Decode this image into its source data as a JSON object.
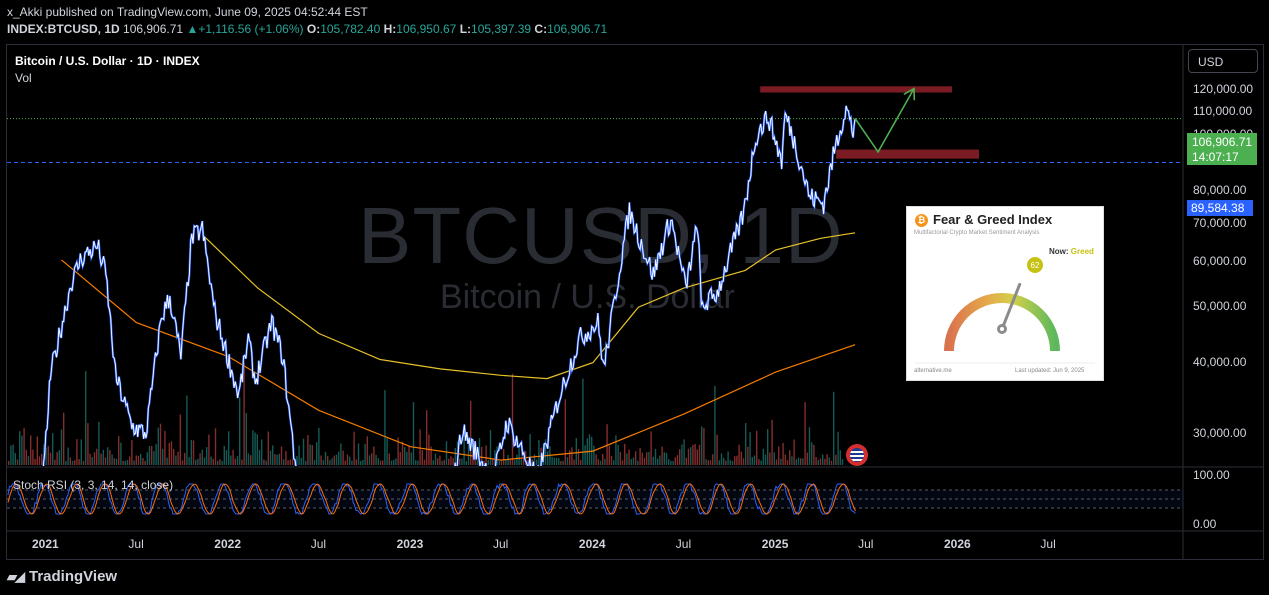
{
  "header": {
    "published_line": "x_Akki published on TradingView.com, June 09, 2025 04:52:44 EST",
    "symbol": "INDEX:BTCUSD, 1D",
    "last": "106,906.71",
    "change": "+1,116.56 (+1.06%)",
    "change_arrow": "▲",
    "o_label": "O:",
    "o": "105,782.40",
    "h_label": "H:",
    "h": "106,950.67",
    "l_label": "L:",
    "l": "105,397.39",
    "c_label": "C:",
    "c": "106,906.71"
  },
  "legend": {
    "title": "Bitcoin / U.S. Dollar · 1D · INDEX",
    "volume": "Vol"
  },
  "watermark": {
    "big": "BTCUSD, 1D",
    "small": "Bitcoin / U.S. Dollar"
  },
  "currency_button": "USD",
  "price_tag": {
    "price": "106,906.71",
    "countdown": "14:07:17",
    "color": "#4caf50"
  },
  "level_tag": {
    "price": "89,584.38",
    "color": "#2962ff"
  },
  "stoch_label": "Stoch RSI (3, 3, 14, 14, close)",
  "stoch_axis": [
    "100.00",
    "0.00"
  ],
  "fear_greed": {
    "coin_glyph": "₿",
    "title": "Fear & Greed Index",
    "subtitle": "Multifactorial Crypto Market Sentiment Analysis",
    "now_label": "Now:",
    "now_value": "Greed",
    "value": 62,
    "footer_source": "alternative.me",
    "footer_updated": "Last updated: Jun 9, 2025"
  },
  "branding": "TradingView",
  "chart_data": {
    "type": "line",
    "title": "Bitcoin / U.S. Dollar · 1D · INDEX",
    "y_axis_labels": [
      "120,000.00",
      "110,000.00",
      "100,000.00",
      "80,000.00",
      "70,000.00",
      "60,000.00",
      "50,000.00",
      "40,000.00",
      "30,000.00"
    ],
    "x_axis_labels": [
      {
        "label": "2021",
        "bold": true
      },
      {
        "label": "Jul",
        "bold": false
      },
      {
        "label": "2022",
        "bold": true
      },
      {
        "label": "Jul",
        "bold": false
      },
      {
        "label": "2023",
        "bold": true
      },
      {
        "label": "Jul",
        "bold": false
      },
      {
        "label": "2024",
        "bold": true
      },
      {
        "label": "Jul",
        "bold": false
      },
      {
        "label": "2025",
        "bold": true
      },
      {
        "label": "Jul",
        "bold": false
      },
      {
        "label": "2026",
        "bold": true
      },
      {
        "label": "Jul",
        "bold": false
      }
    ],
    "ylim": [
      26000,
      123000
    ],
    "price_series": {
      "name": "BTCUSD",
      "color": "#2962ff",
      "points": [
        [
          "2020-12-25",
          24000
        ],
        [
          "2021-01-10",
          38000
        ],
        [
          "2021-02-20",
          55000
        ],
        [
          "2021-03-13",
          61000
        ],
        [
          "2021-04-14",
          64000
        ],
        [
          "2021-05-01",
          57000
        ],
        [
          "2021-05-20",
          38000
        ],
        [
          "2021-06-22",
          31000
        ],
        [
          "2021-07-20",
          30000
        ],
        [
          "2021-08-20",
          48000
        ],
        [
          "2021-09-06",
          52000
        ],
        [
          "2021-09-28",
          41000
        ],
        [
          "2021-10-20",
          66000
        ],
        [
          "2021-11-10",
          68500
        ],
        [
          "2021-12-05",
          49000
        ],
        [
          "2022-01-22",
          35000
        ],
        [
          "2022-02-10",
          44000
        ],
        [
          "2022-02-24",
          37000
        ],
        [
          "2022-03-29",
          47000
        ],
        [
          "2022-04-20",
          41000
        ],
        [
          "2022-05-12",
          28000
        ],
        [
          "2022-06-18",
          18000
        ],
        [
          "2022-07-30",
          24000
        ],
        [
          "2022-08-15",
          24500
        ],
        [
          "2022-09-15",
          19500
        ],
        [
          "2022-11-05",
          21000
        ],
        [
          "2022-11-21",
          15700
        ],
        [
          "2022-12-31",
          16500
        ],
        [
          "2023-02-15",
          24500
        ],
        [
          "2023-03-10",
          20000
        ],
        [
          "2023-04-14",
          30500
        ],
        [
          "2023-06-15",
          25000
        ],
        [
          "2023-07-13",
          31500
        ],
        [
          "2023-09-11",
          25000
        ],
        [
          "2023-10-24",
          34500
        ],
        [
          "2023-12-05",
          44000
        ],
        [
          "2024-01-11",
          47000
        ],
        [
          "2024-01-23",
          39000
        ],
        [
          "2024-02-28",
          62000
        ],
        [
          "2024-03-14",
          73500
        ],
        [
          "2024-05-01",
          57000
        ],
        [
          "2024-06-05",
          71500
        ],
        [
          "2024-07-05",
          54000
        ],
        [
          "2024-07-29",
          70000
        ],
        [
          "2024-08-05",
          50000
        ],
        [
          "2024-09-06",
          53000
        ],
        [
          "2024-10-29",
          73000
        ],
        [
          "2024-11-22",
          99500
        ],
        [
          "2024-12-17",
          108000
        ],
        [
          "2025-01-13",
          90000
        ],
        [
          "2025-01-20",
          109000
        ],
        [
          "2025-02-10",
          96000
        ],
        [
          "2025-03-10",
          78000
        ],
        [
          "2025-04-07",
          76000
        ],
        [
          "2025-05-01",
          96000
        ],
        [
          "2025-05-22",
          111800
        ],
        [
          "2025-06-05",
          101000
        ],
        [
          "2025-06-09",
          106906
        ]
      ]
    },
    "ma_series": [
      {
        "color": "#e6c229",
        "points": [
          [
            "2021-11-10",
            67000
          ],
          [
            "2022-03-01",
            54000
          ],
          [
            "2022-07-01",
            45000
          ],
          [
            "2022-11-01",
            40500
          ],
          [
            "2023-03-01",
            39000
          ],
          [
            "2023-07-01",
            38000
          ],
          [
            "2023-10-01",
            37500
          ],
          [
            "2024-01-01",
            40000
          ],
          [
            "2024-04-01",
            50000
          ],
          [
            "2024-07-01",
            54000
          ],
          [
            "2024-11-01",
            58000
          ],
          [
            "2025-01-01",
            63000
          ],
          [
            "2025-04-01",
            66000
          ],
          [
            "2025-06-09",
            67500
          ]
        ]
      },
      {
        "color": "#f57c00",
        "points": [
          [
            "2021-02-01",
            60500
          ],
          [
            "2021-07-01",
            47000
          ],
          [
            "2022-01-01",
            41000
          ],
          [
            "2022-07-01",
            33000
          ],
          [
            "2023-01-01",
            28500
          ],
          [
            "2023-07-01",
            27000
          ],
          [
            "2024-01-01",
            28000
          ],
          [
            "2024-07-01",
            32500
          ],
          [
            "2025-01-01",
            38500
          ],
          [
            "2025-06-09",
            43000
          ]
        ]
      }
    ],
    "annotations": [
      {
        "type": "zone",
        "color": "#7b1c24",
        "from": "2024-12-01",
        "to": "2025-12-20",
        "y": [
          118800,
          121800
        ]
      },
      {
        "type": "zone",
        "color": "#7b1c24",
        "from": "2025-05-02",
        "to": "2026-02-12",
        "y": [
          91000,
          94400
        ]
      },
      {
        "type": "path",
        "color": "#4caf50",
        "points": [
          [
            "2025-06-09",
            107000
          ],
          [
            "2025-07-25",
            93500
          ],
          [
            "2025-10-05",
            120700
          ]
        ]
      },
      {
        "type": "hline",
        "color": "#2962ff",
        "value": 89584.38,
        "style": "dashed"
      },
      {
        "type": "hline",
        "color": "#4caf50",
        "value": 106906.71,
        "style": "dotted"
      }
    ],
    "volume": {
      "colors": {
        "up": "#26a69a",
        "down": "#ef5350"
      }
    },
    "stoch_rsi": {
      "k_color": "#2962ff",
      "d_color": "#ff6d00",
      "range": [
        0,
        100
      ],
      "bands": [
        20,
        50,
        80
      ]
    }
  }
}
